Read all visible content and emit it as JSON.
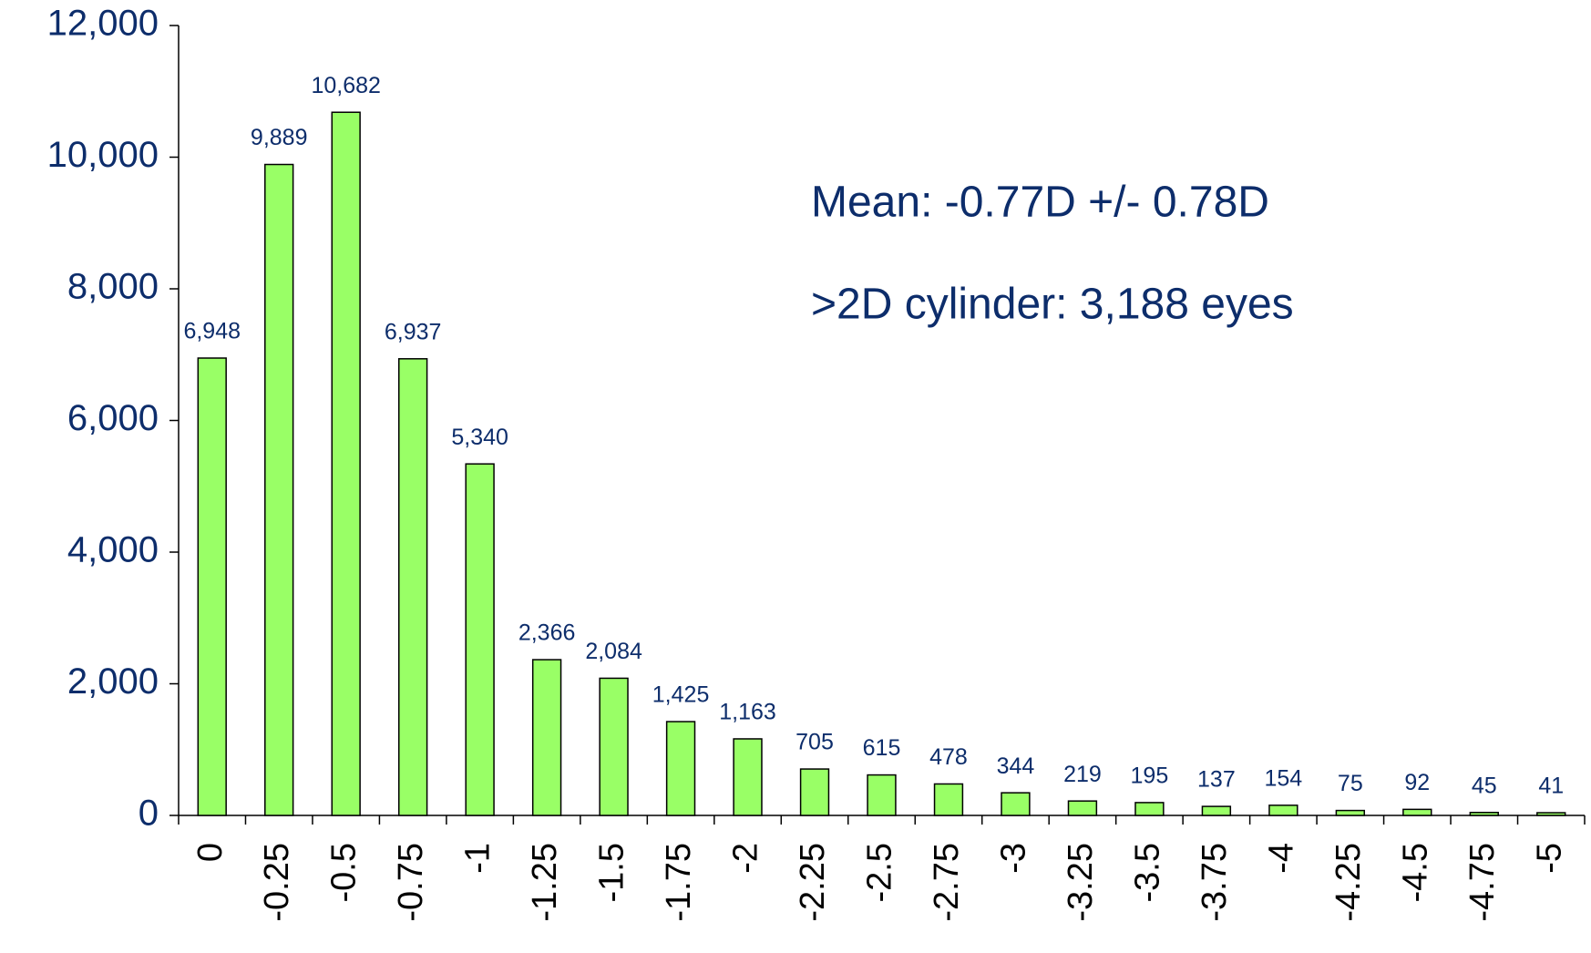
{
  "chart_data": {
    "type": "bar",
    "categories": [
      "0",
      "-0.25",
      "-0.5",
      "-0.75",
      "-1",
      "-1.25",
      "-1.5",
      "-1.75",
      "-2",
      "-2.25",
      "-2.5",
      "-2.75",
      "-3",
      "-3.25",
      "-3.5",
      "-3.75",
      "-4",
      "-4.25",
      "-4.5",
      "-4.75",
      "-5"
    ],
    "values": [
      6948,
      9889,
      10682,
      6937,
      5340,
      2366,
      2084,
      1425,
      1163,
      705,
      615,
      478,
      344,
      219,
      195,
      137,
      154,
      75,
      92,
      45,
      41
    ],
    "value_labels": [
      "6,948",
      "9,889",
      "10,682",
      "6,937",
      "5,340",
      "2,366",
      "2,084",
      "1,425",
      "1,163",
      "705",
      "615",
      "478",
      "344",
      "219",
      "195",
      "137",
      "154",
      "75",
      "92",
      "45",
      "41"
    ],
    "color": "#99ff66",
    "ylim": [
      0,
      12000
    ],
    "yticks": [
      0,
      {
        "value": 2000,
        "label": "2,000"
      },
      {
        "value": 4000,
        "label": "4,000"
      },
      {
        "value": 6000,
        "label": "6,000"
      },
      {
        "value": 8000,
        "label": "8,000"
      },
      {
        "value": 10000,
        "label": "10,000"
      },
      {
        "value": 12000,
        "label": "12,000"
      }
    ],
    "annotations": [
      "Mean: -0.77D +/- 0.78D",
      ">2D cylinder: 3,188 eyes"
    ]
  }
}
